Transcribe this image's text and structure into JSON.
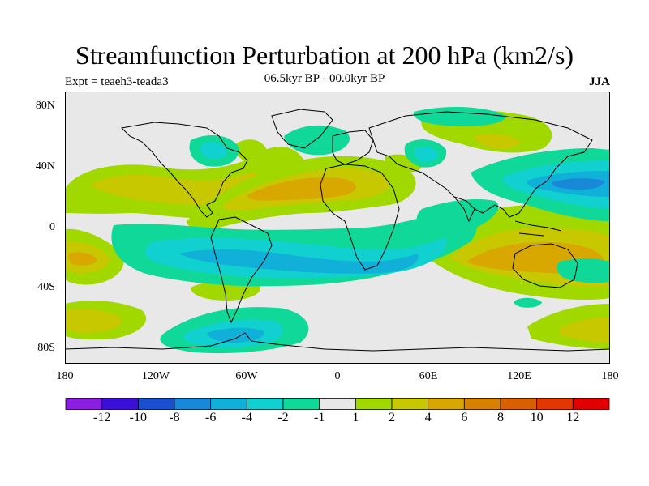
{
  "title": "Streamfunction Perturbation at 200 hPa (km2/s)",
  "subtitle": "06.5kyr BP - 00.0kyr BP",
  "experiment": "Expt = teaeh3-teada3",
  "season": "JJA",
  "axes": {
    "lat_labels": [
      "80N",
      "40N",
      "0",
      "40S",
      "80S"
    ],
    "lon_labels": [
      "180",
      "120W",
      "60W",
      "0",
      "60E",
      "120E",
      "180"
    ]
  },
  "colorbar": {
    "colors": [
      "#8a1fe0",
      "#3a10d8",
      "#1a50d0",
      "#1a88d8",
      "#10b0d8",
      "#10d0d0",
      "#10d898",
      "#e8e8e8",
      "#a0d800",
      "#c8c800",
      "#d8a800",
      "#d88000",
      "#d86000",
      "#e03800",
      "#e00000"
    ],
    "labels": [
      "-12",
      "-10",
      "-8",
      "-6",
      "-4",
      "-2",
      "-1",
      "1",
      "2",
      "4",
      "6",
      "8",
      "10",
      "12"
    ]
  },
  "chart_data": {
    "type": "heatmap",
    "title": "Streamfunction Perturbation at 200 hPa (km2/s)",
    "subtitle": "06.5kyr BP - 00.0kyr BP",
    "units": "km2/s",
    "season": "JJA",
    "xlim": [
      -180,
      180
    ],
    "ylim": [
      -90,
      90
    ],
    "contour_levels": [
      -12,
      -10,
      -8,
      -6,
      -4,
      -2,
      -1,
      1,
      2,
      4,
      6,
      8,
      10,
      12
    ],
    "features": [
      {
        "region": "Southern Pacific / South America / South Atlantic band",
        "sign": "negative",
        "approx_min": -6
      },
      {
        "region": "Western Pacific (East Asia, ~25N)",
        "sign": "negative",
        "approx_min": -6
      },
      {
        "region": "Central Asia / East Asia north (~60N)",
        "sign": "negative",
        "approx_min": -4
      },
      {
        "region": "Hudson Bay / North America (~55N)",
        "sign": "negative",
        "approx_min": -4
      },
      {
        "region": "Southern Ocean near Antarctica (~70S, 60W)",
        "sign": "negative",
        "approx_min": -6
      },
      {
        "region": "Eastern Pacific / Central Pacific NH (~35N)",
        "sign": "positive",
        "approx_max": 6
      },
      {
        "region": "North Atlantic / North Africa (~25N)",
        "sign": "positive",
        "approx_max": 6
      },
      {
        "region": "Indonesia / Australia (~25S)",
        "sign": "positive",
        "approx_max": 6
      },
      {
        "region": "South Pacific near dateline (~20S)",
        "sign": "positive",
        "approx_max": 6
      },
      {
        "region": "Southern Ocean Pacific sector (~60S)",
        "sign": "positive",
        "approx_max": 4
      }
    ]
  }
}
